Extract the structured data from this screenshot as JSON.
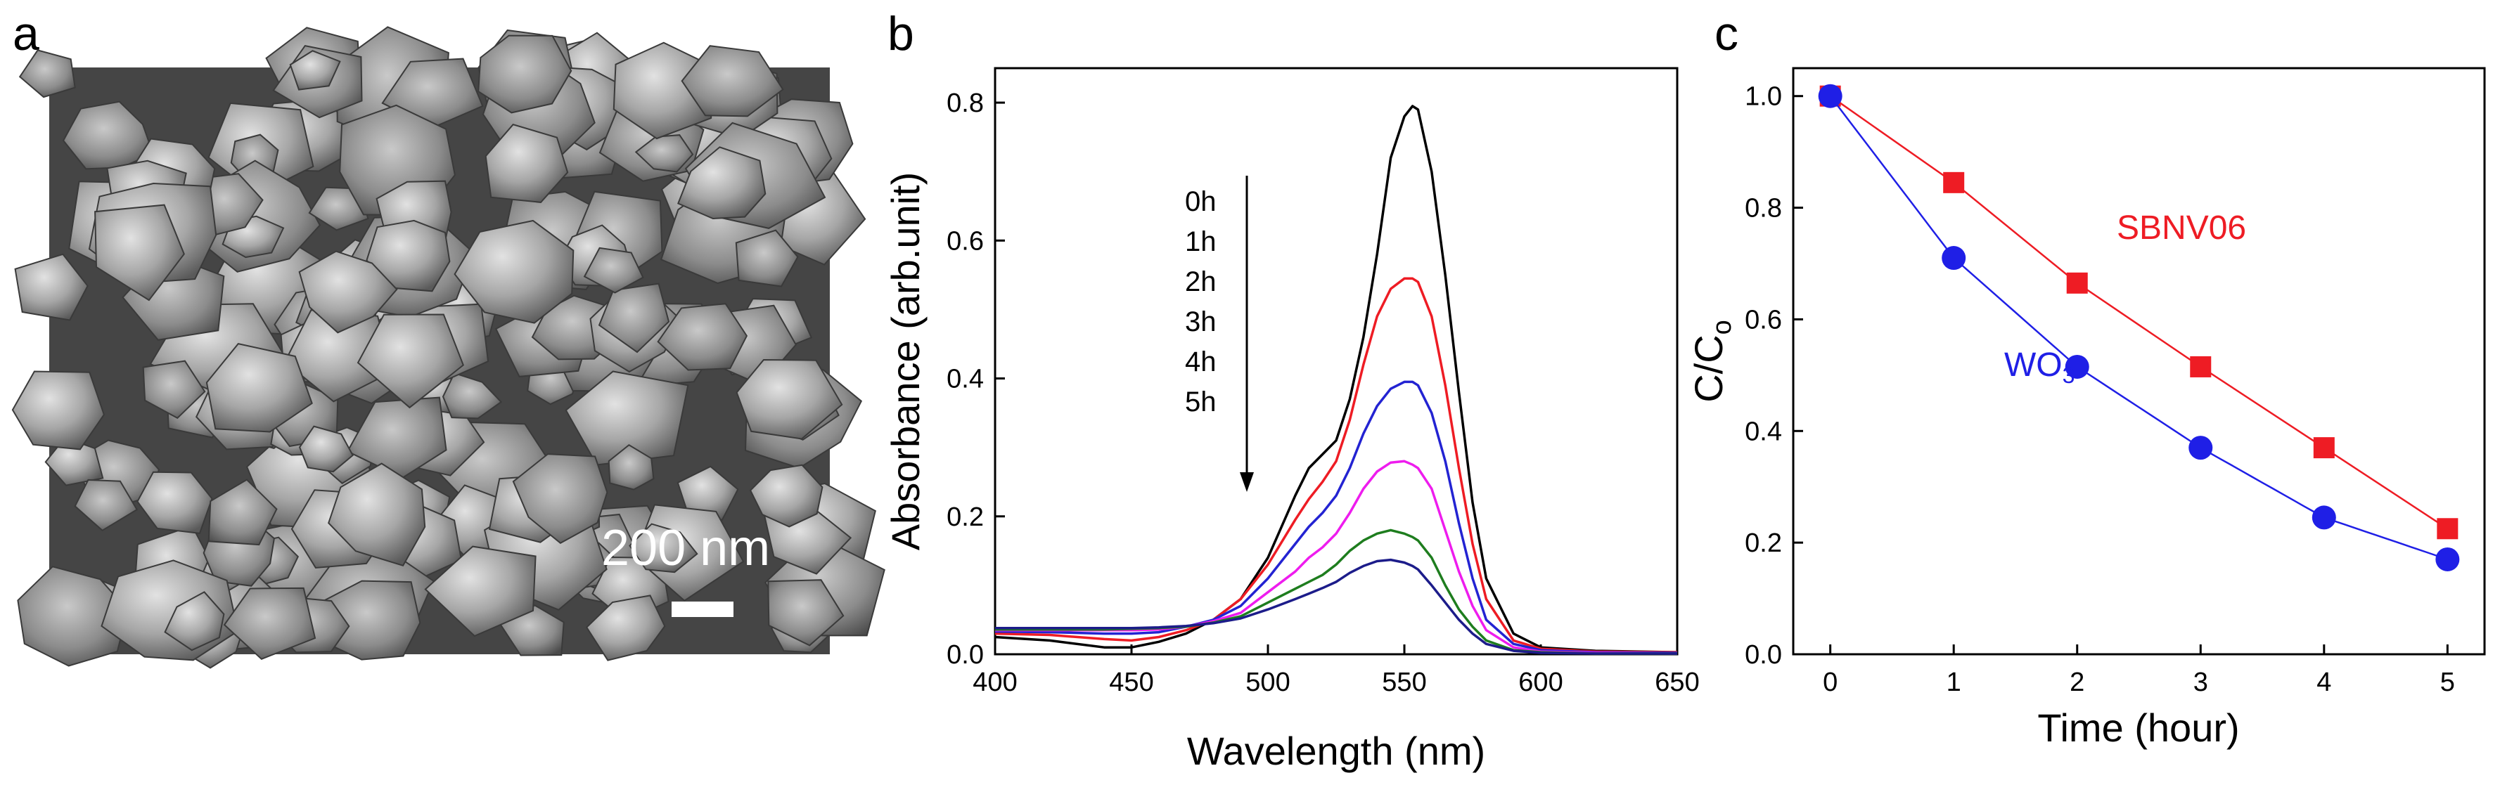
{
  "panel_labels": {
    "a": "a",
    "b": "b",
    "c": "c"
  },
  "sem": {
    "scale_bar_label": "200 nm"
  },
  "colors": {
    "axis": "#000000",
    "black": "#000000",
    "red": "#ee1c24",
    "blue": "#2323d2",
    "magenta": "#ee1cee",
    "green": "#1e7d1e",
    "navy": "#1c1c8a",
    "sbnv06": "#ee1c24",
    "wo3": "#1f1fe6"
  },
  "chart_data": [
    {
      "type": "line",
      "title": "",
      "xlabel": "Wavelength (nm)",
      "ylabel": "Absorbance (arb.unit)",
      "xlim": [
        400,
        650
      ],
      "ylim": [
        0,
        0.85
      ],
      "xticks": [
        400,
        450,
        500,
        550,
        600,
        650
      ],
      "yticks": [
        0.0,
        0.2,
        0.4,
        0.6,
        0.8
      ],
      "xtick_labels": [
        "400",
        "450",
        "500",
        "550",
        "600",
        "650"
      ],
      "ytick_labels": [
        "0.0",
        "0.2",
        "0.4",
        "0.6",
        "0.8"
      ],
      "legend": [
        "0h",
        "1h",
        "2h",
        "3h",
        "4h",
        "5h"
      ],
      "x": [
        400,
        420,
        440,
        450,
        460,
        470,
        480,
        490,
        500,
        510,
        515,
        520,
        525,
        530,
        535,
        540,
        545,
        550,
        553,
        555,
        560,
        565,
        570,
        575,
        580,
        590,
        600,
        620,
        650
      ],
      "series": [
        {
          "name": "0h",
          "color": "black",
          "values": [
            0.025,
            0.02,
            0.01,
            0.01,
            0.018,
            0.03,
            0.05,
            0.08,
            0.14,
            0.23,
            0.27,
            0.29,
            0.31,
            0.37,
            0.46,
            0.58,
            0.72,
            0.78,
            0.795,
            0.79,
            0.7,
            0.55,
            0.38,
            0.22,
            0.11,
            0.03,
            0.01,
            0.005,
            0.003
          ]
        },
        {
          "name": "1h",
          "color": "red",
          "values": [
            0.03,
            0.028,
            0.022,
            0.02,
            0.025,
            0.035,
            0.05,
            0.08,
            0.13,
            0.195,
            0.225,
            0.25,
            0.28,
            0.34,
            0.42,
            0.49,
            0.53,
            0.545,
            0.545,
            0.54,
            0.49,
            0.39,
            0.27,
            0.16,
            0.08,
            0.02,
            0.008,
            0.004,
            0.003
          ]
        },
        {
          "name": "2h",
          "color": "blue",
          "values": [
            0.033,
            0.032,
            0.03,
            0.03,
            0.032,
            0.04,
            0.05,
            0.07,
            0.11,
            0.16,
            0.185,
            0.205,
            0.23,
            0.27,
            0.32,
            0.36,
            0.385,
            0.395,
            0.395,
            0.39,
            0.35,
            0.28,
            0.19,
            0.11,
            0.05,
            0.015,
            0.006,
            0.003,
            0.002
          ]
        },
        {
          "name": "3h",
          "color": "magenta",
          "values": [
            0.035,
            0.035,
            0.035,
            0.035,
            0.036,
            0.04,
            0.048,
            0.06,
            0.09,
            0.12,
            0.14,
            0.155,
            0.175,
            0.205,
            0.24,
            0.265,
            0.278,
            0.28,
            0.275,
            0.27,
            0.24,
            0.18,
            0.12,
            0.07,
            0.035,
            0.01,
            0.004,
            0.002,
            0.001
          ]
        },
        {
          "name": "4h",
          "color": "green",
          "values": [
            0.036,
            0.036,
            0.036,
            0.037,
            0.038,
            0.04,
            0.046,
            0.055,
            0.075,
            0.095,
            0.105,
            0.115,
            0.13,
            0.15,
            0.165,
            0.175,
            0.18,
            0.175,
            0.17,
            0.165,
            0.14,
            0.1,
            0.065,
            0.04,
            0.02,
            0.006,
            0.003,
            0.001,
            0.001
          ]
        },
        {
          "name": "5h",
          "color": "navy",
          "values": [
            0.038,
            0.038,
            0.038,
            0.038,
            0.039,
            0.041,
            0.045,
            0.052,
            0.065,
            0.08,
            0.088,
            0.096,
            0.105,
            0.118,
            0.128,
            0.135,
            0.137,
            0.133,
            0.128,
            0.123,
            0.1,
            0.075,
            0.05,
            0.03,
            0.015,
            0.005,
            0.002,
            0.001,
            0.001
          ]
        }
      ]
    },
    {
      "type": "scatter",
      "title": "",
      "xlabel": "Time (hour)",
      "ylabel": "C/C",
      "ylabel_subscript": "o",
      "xlim": [
        -0.3,
        5.3
      ],
      "ylim": [
        0,
        1.05
      ],
      "xticks": [
        0,
        1,
        2,
        3,
        4,
        5
      ],
      "yticks": [
        0.0,
        0.2,
        0.4,
        0.6,
        0.8,
        1.0
      ],
      "xtick_labels": [
        "0",
        "1",
        "2",
        "3",
        "4",
        "5"
      ],
      "ytick_labels": [
        "0.0",
        "0.2",
        "0.4",
        "0.6",
        "0.8",
        "1.0"
      ],
      "series": [
        {
          "name": "SBNV06",
          "label_text": "SBNV06",
          "marker": "square",
          "color": "sbnv06",
          "x": [
            0,
            1,
            2,
            3,
            4,
            5
          ],
          "values": [
            1.0,
            0.845,
            0.665,
            0.515,
            0.37,
            0.225
          ]
        },
        {
          "name": "WO3",
          "label_text": "WO",
          "label_subscript": "3",
          "marker": "circle",
          "color": "wo3",
          "x": [
            0,
            1,
            2,
            3,
            4,
            5
          ],
          "values": [
            1.0,
            0.71,
            0.515,
            0.37,
            0.245,
            0.17
          ]
        }
      ]
    }
  ]
}
